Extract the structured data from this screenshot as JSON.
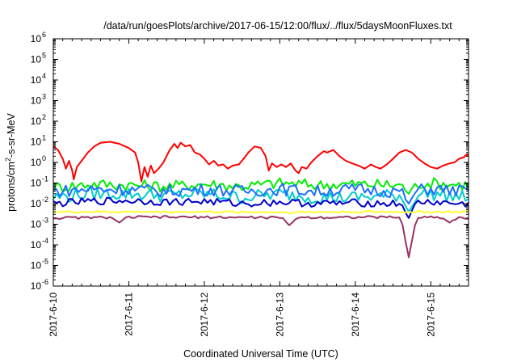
{
  "chart_data": {
    "type": "line",
    "title": "/data/run/goesPlots/archive/2017-06-15/12:00/flux/../flux/5daysMoonFluxes.txt",
    "xlabel": "Coordinated Universal Time (UTC)",
    "ylabel": "protons/cm²-s-sr-MeV",
    "ylabel_parts": {
      "pre": "protons/cm",
      "sup": "2",
      "post": "-s-sr-MeV"
    },
    "y_scale": "log",
    "ylim": [
      1e-06,
      1000000.0
    ],
    "xlim": [
      "2017-06-10 00:00",
      "2017-06-15 12:00"
    ],
    "x_ticks": [
      "2017-6-10",
      "2017-6-11",
      "2017-6-12",
      "2017-6-13",
      "2017-6-14",
      "2017-6-15"
    ],
    "y_ticks": [
      {
        "value": 1e-06,
        "base": "10",
        "exp": "-6"
      },
      {
        "value": 1e-05,
        "base": "10",
        "exp": "-5"
      },
      {
        "value": 0.0001,
        "base": "10",
        "exp": "-4"
      },
      {
        "value": 0.001,
        "base": "10",
        "exp": "-3"
      },
      {
        "value": 0.01,
        "base": "10",
        "exp": "-2"
      },
      {
        "value": 0.1,
        "base": "10",
        "exp": "-1"
      },
      {
        "value": 1.0,
        "base": "10",
        "exp": "0"
      },
      {
        "value": 10.0,
        "base": "10",
        "exp": "1"
      },
      {
        "value": 100.0,
        "base": "10",
        "exp": "2"
      },
      {
        "value": 1000.0,
        "base": "10",
        "exp": "3"
      },
      {
        "value": 10000.0,
        "base": "10",
        "exp": "4"
      },
      {
        "value": 100000.0,
        "base": "10",
        "exp": "5"
      },
      {
        "value": 1000000.0,
        "base": "10",
        "exp": "6"
      }
    ],
    "grid": false,
    "legend": "none",
    "series": [
      {
        "color": "#ff0000",
        "points": [
          [
            "2017-06-10 00:00",
            6
          ],
          [
            "2017-06-10 01:30",
            4
          ],
          [
            "2017-06-10 03:00",
            1.5
          ],
          [
            "2017-06-10 04:00",
            0.5
          ],
          [
            "2017-06-10 05:00",
            1.2
          ],
          [
            "2017-06-10 06:00",
            0.4
          ],
          [
            "2017-06-10 06:30",
            0.15
          ],
          [
            "2017-06-10 07:30",
            0.6
          ],
          [
            "2017-06-10 09:00",
            1.2
          ],
          [
            "2017-06-10 11:00",
            3
          ],
          [
            "2017-06-10 13:00",
            6
          ],
          [
            "2017-06-10 15:00",
            9
          ],
          [
            "2017-06-10 18:00",
            10
          ],
          [
            "2017-06-10 21:00",
            8
          ],
          [
            "2017-06-11 00:00",
            5
          ],
          [
            "2017-06-11 02:00",
            3
          ],
          [
            "2017-06-11 03:00",
            1
          ],
          [
            "2017-06-11 04:00",
            0.12
          ],
          [
            "2017-06-11 05:00",
            0.6
          ],
          [
            "2017-06-11 06:00",
            0.2
          ],
          [
            "2017-06-11 07:00",
            0.7
          ],
          [
            "2017-06-11 08:00",
            0.3
          ],
          [
            "2017-06-11 09:30",
            0.5
          ],
          [
            "2017-06-11 11:00",
            1
          ],
          [
            "2017-06-11 13:00",
            4
          ],
          [
            "2017-06-11 14:30",
            8
          ],
          [
            "2017-06-11 15:30",
            5
          ],
          [
            "2017-06-11 16:30",
            9
          ],
          [
            "2017-06-11 18:00",
            6
          ],
          [
            "2017-06-11 19:30",
            7
          ],
          [
            "2017-06-11 21:00",
            3
          ],
          [
            "2017-06-11 22:30",
            2.5
          ],
          [
            "2017-06-12 00:00",
            1.5
          ],
          [
            "2017-06-12 01:30",
            0.8
          ],
          [
            "2017-06-12 03:00",
            1.2
          ],
          [
            "2017-06-12 04:30",
            0.7
          ],
          [
            "2017-06-12 06:00",
            0.8
          ],
          [
            "2017-06-12 07:30",
            0.5
          ],
          [
            "2017-06-12 09:00",
            0.7
          ],
          [
            "2017-06-12 11:00",
            0.8
          ],
          [
            "2017-06-12 12:30",
            1.5
          ],
          [
            "2017-06-12 14:00",
            3
          ],
          [
            "2017-06-12 16:00",
            6
          ],
          [
            "2017-06-12 18:00",
            5
          ],
          [
            "2017-06-12 19:30",
            2
          ],
          [
            "2017-06-12 20:30",
            0.4
          ],
          [
            "2017-06-12 21:30",
            0.9
          ],
          [
            "2017-06-12 23:00",
            0.6
          ],
          [
            "2017-06-13 00:30",
            0.8
          ],
          [
            "2017-06-13 02:00",
            0.6
          ],
          [
            "2017-06-13 03:30",
            0.9
          ],
          [
            "2017-06-13 05:00",
            0.4
          ],
          [
            "2017-06-13 06:00",
            0.3
          ],
          [
            "2017-06-13 07:00",
            0.6
          ],
          [
            "2017-06-13 08:30",
            0.5
          ],
          [
            "2017-06-13 10:00",
            1
          ],
          [
            "2017-06-13 12:00",
            2
          ],
          [
            "2017-06-13 14:00",
            3.5
          ],
          [
            "2017-06-13 15:00",
            3
          ],
          [
            "2017-06-13 17:00",
            4
          ],
          [
            "2017-06-13 19:00",
            2
          ],
          [
            "2017-06-13 21:00",
            1.2
          ],
          [
            "2017-06-13 23:00",
            0.9
          ],
          [
            "2017-06-14 01:00",
            0.7
          ],
          [
            "2017-06-14 03:00",
            0.5
          ],
          [
            "2017-06-14 05:00",
            0.8
          ],
          [
            "2017-06-14 06:30",
            0.6
          ],
          [
            "2017-06-14 08:00",
            0.5
          ],
          [
            "2017-06-14 10:00",
            0.8
          ],
          [
            "2017-06-14 12:00",
            1.5
          ],
          [
            "2017-06-14 14:00",
            3
          ],
          [
            "2017-06-14 16:00",
            4
          ],
          [
            "2017-06-14 18:00",
            3
          ],
          [
            "2017-06-14 20:00",
            1.5
          ],
          [
            "2017-06-14 22:00",
            0.9
          ],
          [
            "2017-06-15 00:00",
            0.6
          ],
          [
            "2017-06-15 02:00",
            0.5
          ],
          [
            "2017-06-15 04:00",
            0.7
          ],
          [
            "2017-06-15 06:00",
            0.9
          ],
          [
            "2017-06-15 07:30",
            1
          ],
          [
            "2017-06-15 09:00",
            1.5
          ],
          [
            "2017-06-15 10:30",
            1.8
          ],
          [
            "2017-06-15 11:30",
            2.5
          ],
          [
            "2017-06-15 12:00",
            2
          ]
        ]
      },
      {
        "color": "#00ee00",
        "points": [
          [
            "2017-06-10 00:00",
            0.06
          ],
          [
            "2017-06-10 12:00",
            0.09
          ],
          [
            "2017-06-11 00:00",
            0.08
          ],
          [
            "2017-06-11 12:00",
            0.07
          ],
          [
            "2017-06-12 00:00",
            0.09
          ],
          [
            "2017-06-12 12:00",
            0.07
          ],
          [
            "2017-06-13 00:00",
            0.1
          ],
          [
            "2017-06-13 12:00",
            0.08
          ],
          [
            "2017-06-14 00:00",
            0.09
          ],
          [
            "2017-06-14 12:00",
            0.08
          ],
          [
            "2017-06-15 00:00",
            0.1
          ],
          [
            "2017-06-15 12:00",
            0.08
          ]
        ],
        "noise": 0.28,
        "dips": [
          [
            "2017-06-14 17:00",
            0.03
          ]
        ]
      },
      {
        "color": "#00cccc",
        "points": [
          [
            "2017-06-10 00:00",
            0.02
          ],
          [
            "2017-06-10 12:00",
            0.03
          ],
          [
            "2017-06-11 00:00",
            0.03
          ],
          [
            "2017-06-11 12:00",
            0.025
          ],
          [
            "2017-06-12 00:00",
            0.03
          ],
          [
            "2017-06-12 12:00",
            0.02
          ],
          [
            "2017-06-13 00:00",
            0.03
          ],
          [
            "2017-06-13 12:00",
            0.02
          ],
          [
            "2017-06-14 00:00",
            0.02
          ],
          [
            "2017-06-14 12:00",
            0.025
          ],
          [
            "2017-06-15 00:00",
            0.03
          ],
          [
            "2017-06-15 12:00",
            0.02
          ]
        ],
        "noise": 0.32,
        "dips": [
          [
            "2017-06-14 17:00",
            0.004
          ]
        ]
      },
      {
        "color": "#1e6fff",
        "points": [
          [
            "2017-06-10 00:00",
            0.04
          ],
          [
            "2017-06-10 12:00",
            0.05
          ],
          [
            "2017-06-11 00:00",
            0.05
          ],
          [
            "2017-06-11 12:00",
            0.04
          ],
          [
            "2017-06-12 00:00",
            0.05
          ],
          [
            "2017-06-12 12:00",
            0.04
          ],
          [
            "2017-06-13 00:00",
            0.05
          ],
          [
            "2017-06-13 12:00",
            0.04
          ],
          [
            "2017-06-14 00:00",
            0.05
          ],
          [
            "2017-06-14 12:00",
            0.04
          ],
          [
            "2017-06-15 00:00",
            0.05
          ],
          [
            "2017-06-15 12:00",
            0.04
          ]
        ],
        "noise": 0.3,
        "dips": [
          [
            "2017-06-14 17:00",
            0.01
          ]
        ]
      },
      {
        "color": "#0000cc",
        "points": [
          [
            "2017-06-10 00:00",
            0.01
          ],
          [
            "2017-06-10 12:00",
            0.013
          ],
          [
            "2017-06-11 00:00",
            0.014
          ],
          [
            "2017-06-11 12:00",
            0.012
          ],
          [
            "2017-06-12 00:00",
            0.013
          ],
          [
            "2017-06-12 12:00",
            0.01
          ],
          [
            "2017-06-13 00:00",
            0.012
          ],
          [
            "2017-06-13 12:00",
            0.01
          ],
          [
            "2017-06-14 00:00",
            0.011
          ],
          [
            "2017-06-14 12:00",
            0.01
          ],
          [
            "2017-06-15 00:00",
            0.012
          ],
          [
            "2017-06-15 12:00",
            0.009
          ]
        ],
        "noise": 0.18,
        "dips": [
          [
            "2017-06-14 17:00",
            0.002
          ]
        ]
      },
      {
        "color": "#ffff33",
        "points": [
          [
            "2017-06-10 00:00",
            0.004
          ],
          [
            "2017-06-11 00:00",
            0.004
          ],
          [
            "2017-06-12 00:00",
            0.004
          ],
          [
            "2017-06-13 00:00",
            0.0038
          ],
          [
            "2017-06-14 00:00",
            0.004
          ],
          [
            "2017-06-15 00:00",
            0.004
          ],
          [
            "2017-06-15 12:00",
            0.004
          ]
        ],
        "noise": 0.05,
        "dips": []
      },
      {
        "color": "#993366",
        "points": [
          [
            "2017-06-10 00:00",
            0.002
          ],
          [
            "2017-06-11 00:00",
            0.0022
          ],
          [
            "2017-06-12 00:00",
            0.0022
          ],
          [
            "2017-06-13 00:00",
            0.0021
          ],
          [
            "2017-06-14 00:00",
            0.0022
          ],
          [
            "2017-06-15 00:00",
            0.0022
          ],
          [
            "2017-06-15 12:00",
            0.002
          ]
        ],
        "noise": 0.06,
        "dips": [
          [
            "2017-06-10 21:00",
            0.0012
          ],
          [
            "2017-06-13 03:00",
            0.0009
          ],
          [
            "2017-06-14 17:00",
            2.5e-05
          ],
          [
            "2017-06-15 06:00",
            0.0012
          ]
        ]
      }
    ]
  }
}
